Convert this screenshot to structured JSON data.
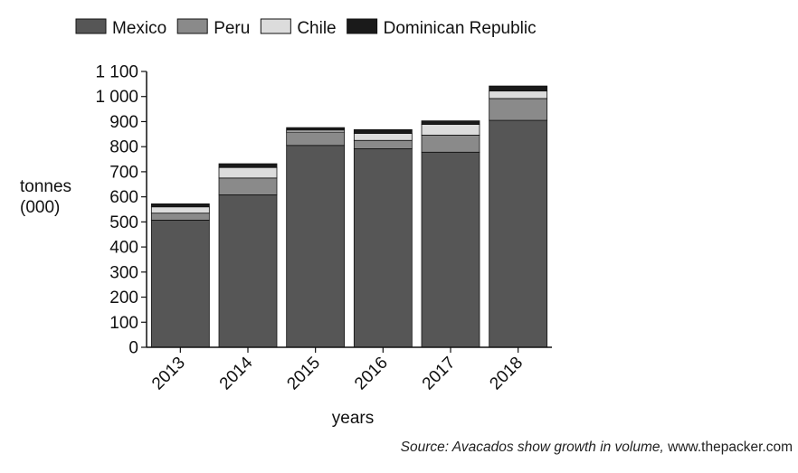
{
  "chart_data": {
    "type": "bar",
    "stacked": true,
    "categories": [
      "2013",
      "2014",
      "2015",
      "2016",
      "2017",
      "2018"
    ],
    "series": [
      {
        "name": "Mexico",
        "color": "#565656",
        "values": [
          507,
          608,
          805,
          792,
          778,
          905
        ]
      },
      {
        "name": "Peru",
        "color": "#8a8a8a",
        "values": [
          28,
          67,
          53,
          33,
          68,
          87
        ]
      },
      {
        "name": "Chile",
        "color": "#dcdcdc",
        "values": [
          25,
          42,
          8,
          28,
          43,
          30
        ]
      },
      {
        "name": "Dominican Republic",
        "color": "#1a1a1a",
        "values": [
          12,
          15,
          10,
          15,
          14,
          20
        ]
      }
    ],
    "ylabel": [
      "tonnes",
      "(000)"
    ],
    "xlabel": "years",
    "ylim": [
      0,
      1100
    ],
    "yticks": [
      0,
      100,
      200,
      300,
      400,
      500,
      600,
      700,
      800,
      900,
      1000,
      1100
    ],
    "ytick_labels": [
      "0",
      "100",
      "200",
      "300",
      "400",
      "500",
      "600",
      "700",
      "800",
      "900",
      "1 000",
      "1 100"
    ],
    "legend_position": "top-left",
    "grid": false
  },
  "source": {
    "italic": "Source: Avacados show growth in volume,",
    "plain": " www.thepacker.com"
  }
}
